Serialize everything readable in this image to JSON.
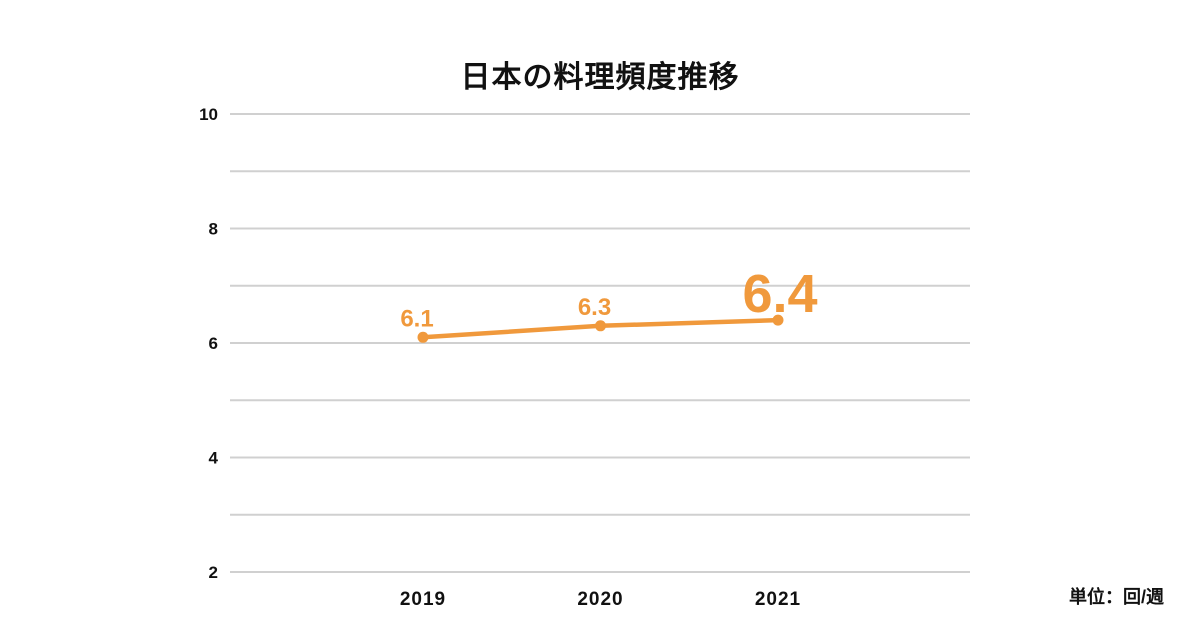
{
  "title": "日本の料理頻度推移",
  "unit_label": "単位：回/週",
  "colors": {
    "accent_orange": "#F0993C",
    "gridline": "#D0D0D0",
    "text": "#111111",
    "background": "#FFFFFF"
  },
  "chart_data": {
    "type": "line",
    "title": "日本の料理頻度推移",
    "categories": [
      "2019",
      "2020",
      "2021"
    ],
    "values": [
      6.1,
      6.3,
      6.4
    ],
    "point_labels": [
      "6.1",
      "6.3",
      "6.4"
    ],
    "point_label_emphasis": [
      false,
      false,
      true
    ],
    "xlabel": "",
    "ylabel": "",
    "ylim": [
      2,
      10
    ],
    "grid_step": 1,
    "ytick_labels": [
      "2",
      "4",
      "6",
      "8",
      "10"
    ],
    "ytick_values": [
      2,
      4,
      6,
      8,
      10
    ],
    "grid": "horizontal-only",
    "legend_position": "none",
    "unit_annotation": "単位：回/週",
    "series_color": "#F0993C"
  }
}
